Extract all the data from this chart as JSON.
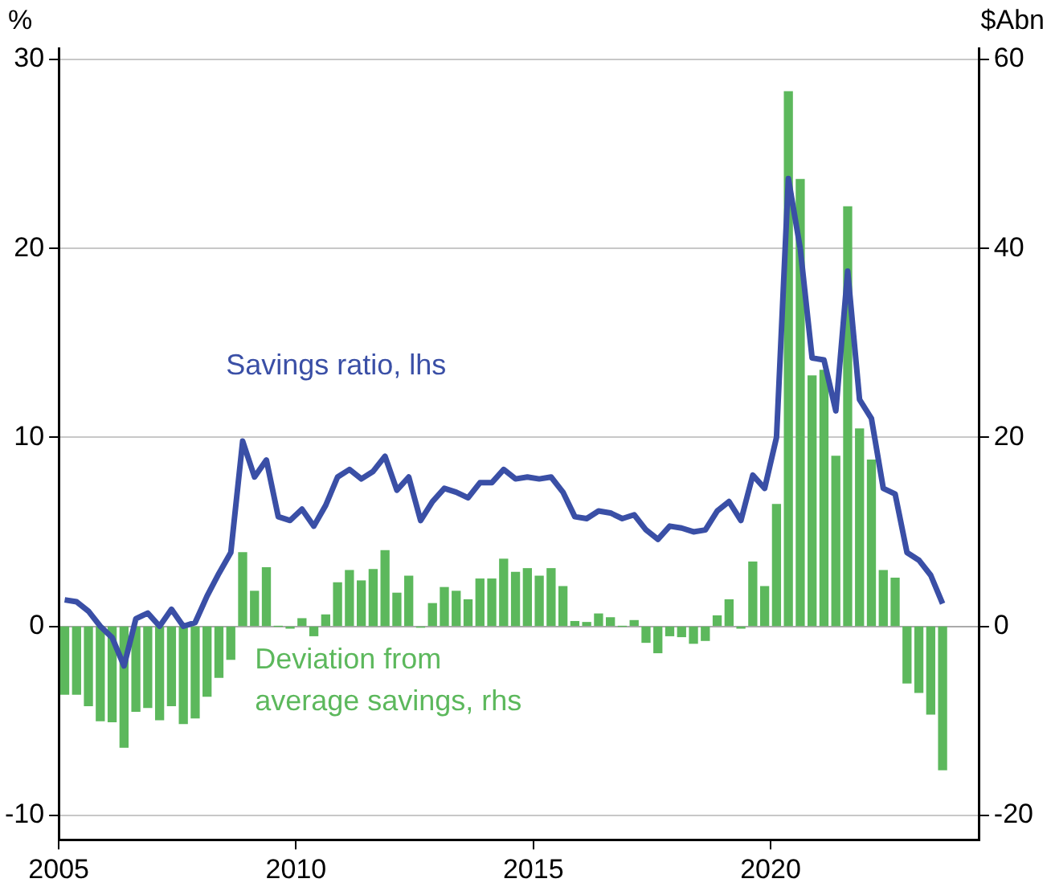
{
  "chart_data": {
    "type": "bar",
    "ylabel": "%",
    "y2label": "$Abn",
    "x": [
      2005.125,
      2005.375,
      2005.625,
      2005.875,
      2006.125,
      2006.375,
      2006.625,
      2006.875,
      2007.125,
      2007.375,
      2007.625,
      2007.875,
      2008.125,
      2008.375,
      2008.625,
      2008.875,
      2009.125,
      2009.375,
      2009.625,
      2009.875,
      2010.125,
      2010.375,
      2010.625,
      2010.875,
      2011.125,
      2011.375,
      2011.625,
      2011.875,
      2012.125,
      2012.375,
      2012.625,
      2012.875,
      2013.125,
      2013.375,
      2013.625,
      2013.875,
      2014.125,
      2014.375,
      2014.625,
      2014.875,
      2015.125,
      2015.375,
      2015.625,
      2015.875,
      2016.125,
      2016.375,
      2016.625,
      2016.875,
      2017.125,
      2017.375,
      2017.625,
      2017.875,
      2018.125,
      2018.375,
      2018.625,
      2018.875,
      2019.125,
      2019.375,
      2019.625,
      2019.875,
      2020.125,
      2020.375,
      2020.625,
      2020.875,
      2021.125,
      2021.375,
      2021.625,
      2021.875,
      2022.125,
      2022.375,
      2022.625,
      2022.875,
      2023.125,
      2023.375,
      2023.625
    ],
    "series": [
      {
        "name": "Deviation from average savings, rhs",
        "axis": "y2",
        "color": "#5cb85c",
        "values": [
          -7.2,
          -7.2,
          -8.4,
          -10,
          -10.1,
          -12.8,
          -9,
          -8.6,
          -9.9,
          -8.4,
          -10.3,
          -9.7,
          -7.4,
          -5.4,
          -3.5,
          7.8,
          3.7,
          6.2,
          0,
          -0.2,
          0.8,
          -1,
          1.2,
          4.6,
          5.9,
          4.8,
          6,
          8,
          3.5,
          5.3,
          -0.1,
          2.4,
          4.1,
          3.7,
          2.8,
          5,
          5,
          7.1,
          5.7,
          6.1,
          5.3,
          6.1,
          4.2,
          0.5,
          0.4,
          1.3,
          0.9,
          0,
          0.6,
          -1.7,
          -2.8,
          -1,
          -1.1,
          -1.8,
          -1.5,
          1.1,
          2.8,
          -0.2,
          6.8,
          4.2,
          12.9,
          56.6,
          47.3,
          26.5,
          27.1,
          18,
          44.4,
          20.9,
          17.6,
          5.9,
          5.1,
          -6,
          -7,
          -9.3,
          -15.2
        ]
      },
      {
        "name": "Savings ratio, lhs",
        "type": "line",
        "color": "#3a4fa6",
        "values": [
          1.4,
          1.3,
          0.8,
          0,
          -0.6,
          -2.1,
          0.4,
          0.7,
          0,
          0.9,
          0,
          0.2,
          1.6,
          2.8,
          3.9,
          9.8,
          7.9,
          8.8,
          5.8,
          5.6,
          6.2,
          5.3,
          6.4,
          7.9,
          8.3,
          7.8,
          8.2,
          9,
          7.2,
          7.9,
          5.6,
          6.6,
          7.3,
          7.1,
          6.8,
          7.6,
          7.6,
          8.3,
          7.8,
          7.9,
          7.8,
          7.9,
          7.1,
          5.8,
          5.7,
          6.1,
          6,
          5.7,
          5.9,
          5.1,
          4.6,
          5.3,
          5.2,
          5,
          5.1,
          6.1,
          6.6,
          5.6,
          8,
          7.3,
          10,
          23.7,
          20,
          14.2,
          14.1,
          11.4,
          18.8,
          12,
          11,
          7.3,
          7,
          3.9,
          3.5,
          2.7,
          1.2
        ]
      }
    ],
    "xlim": [
      2005,
      2024.4
    ],
    "xticks": [
      2005,
      2010,
      2015,
      2020
    ],
    "ylim": [
      -11.3,
      30.6
    ],
    "yticks": [
      -10,
      0,
      10,
      20,
      30
    ],
    "y2lim": [
      -22.6,
      61.2
    ],
    "y2ticks": [
      -20,
      0,
      20,
      40,
      60
    ],
    "grid": "y",
    "legend": false,
    "marker": "none",
    "line_style": "solid"
  }
}
